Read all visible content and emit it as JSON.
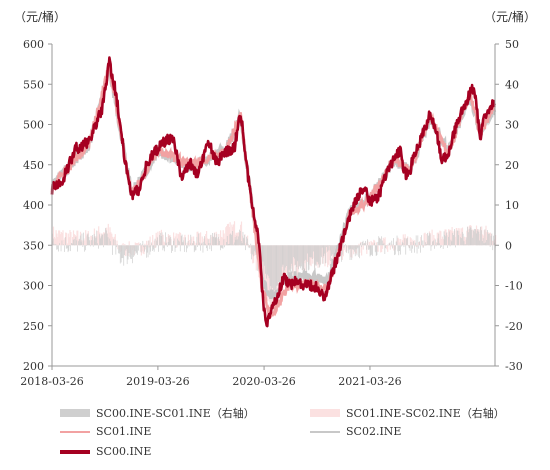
{
  "chart_data": {
    "type": "line",
    "left_unit": "（元/桶）",
    "right_unit": "（元/桶）",
    "x_ticks": [
      "2018-03-26",
      "2019-03-26",
      "2020-03-26",
      "2021-03-26"
    ],
    "x_range": [
      "2018-03-26",
      "2022-05-31"
    ],
    "ylim_left": [
      200,
      600
    ],
    "yticks_left": [
      200,
      250,
      300,
      350,
      400,
      450,
      500,
      550,
      600
    ],
    "ylim_right": [
      -30,
      50
    ],
    "yticks_right": [
      -30,
      -20,
      -10,
      0,
      10,
      20,
      30,
      40,
      50
    ],
    "grid": false,
    "legend_position": "bottom",
    "colors": {
      "sc00": "#a50021",
      "sc01": "#f2a2a2",
      "sc02": "#c8c8c8",
      "spread01": "#cfcfcf",
      "spread12": "#fbe1e1"
    },
    "series": [
      {
        "name": "SC00.INE",
        "axis": "left",
        "x": [
          "2018-03-26",
          "2018-05-01",
          "2018-06-15",
          "2018-08-01",
          "2018-09-15",
          "2018-10-10",
          "2018-11-01",
          "2018-12-01",
          "2018-12-25",
          "2019-01-20",
          "2019-02-20",
          "2019-03-26",
          "2019-04-25",
          "2019-05-20",
          "2019-06-15",
          "2019-07-15",
          "2019-08-10",
          "2019-09-10",
          "2019-09-20",
          "2019-10-15",
          "2019-11-15",
          "2019-12-15",
          "2020-01-05",
          "2020-01-20",
          "2020-02-05",
          "2020-02-25",
          "2020-03-10",
          "2020-03-20",
          "2020-04-01",
          "2020-04-20",
          "2020-05-10",
          "2020-06-01",
          "2020-06-20",
          "2020-07-20",
          "2020-08-20",
          "2020-09-10",
          "2020-10-01",
          "2020-10-20",
          "2020-11-01",
          "2020-11-20",
          "2020-12-15",
          "2021-01-15",
          "2021-02-10",
          "2021-03-05",
          "2021-03-26",
          "2021-04-20",
          "2021-05-20",
          "2021-06-20",
          "2021-07-10",
          "2021-07-20",
          "2021-08-10",
          "2021-08-20",
          "2021-09-15",
          "2021-10-20",
          "2021-11-10",
          "2021-11-30",
          "2021-12-20",
          "2022-01-20",
          "2022-02-10",
          "2022-03-08",
          "2022-03-20",
          "2022-04-10",
          "2022-04-25",
          "2022-05-31"
        ],
        "y": [
          420,
          430,
          470,
          478,
          520,
          578,
          540,
          460,
          410,
          420,
          455,
          470,
          482,
          480,
          435,
          452,
          438,
          472,
          478,
          452,
          465,
          472,
          515,
          470,
          420,
          375,
          355,
          292,
          250,
          270,
          285,
          310,
          300,
          305,
          300,
          300,
          296,
          282,
          295,
          320,
          350,
          385,
          410,
          420,
          405,
          408,
          435,
          460,
          470,
          440,
          438,
          458,
          478,
          515,
          490,
          455,
          460,
          505,
          520,
          540,
          545,
          485,
          510,
          530
        ]
      },
      {
        "name": "SC01.INE",
        "axis": "left",
        "x": [
          "2018-03-26",
          "2018-08-01",
          "2018-10-10",
          "2018-12-25",
          "2019-03-26",
          "2019-07-15",
          "2019-11-15",
          "2020-01-05",
          "2020-03-20",
          "2020-04-20",
          "2020-06-20",
          "2020-09-10",
          "2020-11-01",
          "2021-01-15",
          "2021-03-26",
          "2021-06-20",
          "2021-08-10",
          "2021-10-20",
          "2021-12-20",
          "2022-02-10",
          "2022-03-08",
          "2022-04-10",
          "2022-05-31"
        ],
        "y": [
          422,
          476,
          574,
          412,
          468,
          450,
          466,
          512,
          294,
          262,
          300,
          302,
          295,
          388,
          408,
          458,
          440,
          512,
          462,
          518,
          536,
          488,
          526
        ]
      },
      {
        "name": "SC02.INE",
        "axis": "left",
        "x": [
          "2018-03-26",
          "2018-08-01",
          "2018-10-10",
          "2018-12-25",
          "2019-03-26",
          "2019-07-15",
          "2019-11-15",
          "2020-01-05",
          "2020-03-20",
          "2020-04-20",
          "2020-06-20",
          "2020-09-10",
          "2020-11-01",
          "2021-01-15",
          "2021-03-26",
          "2021-06-20",
          "2021-08-10",
          "2021-10-20",
          "2021-12-20",
          "2022-02-10",
          "2022-03-08",
          "2022-04-10",
          "2022-05-31"
        ],
        "y": [
          425,
          474,
          570,
          415,
          466,
          448,
          468,
          510,
          302,
          288,
          310,
          312,
          305,
          390,
          410,
          456,
          442,
          508,
          465,
          515,
          532,
          490,
          522
        ]
      },
      {
        "name": "SC00.INE-SC01.INE（右轴）",
        "axis": "right",
        "x": [
          "2018-03-26",
          "2018-06-01",
          "2018-08-01",
          "2018-10-01",
          "2018-11-15",
          "2019-01-15",
          "2019-04-01",
          "2019-07-01",
          "2019-10-01",
          "2020-01-01",
          "2020-03-15",
          "2020-04-20",
          "2020-06-01",
          "2020-09-01",
          "2020-11-15",
          "2021-02-01",
          "2021-05-01",
          "2021-08-01",
          "2021-11-01",
          "2022-02-01",
          "2022-04-01",
          "2022-05-31"
        ],
        "y": [
          1,
          0,
          1,
          2,
          -3,
          -2,
          1,
          0,
          1,
          2,
          -5,
          -12,
          -6,
          -4,
          -2,
          -1,
          0,
          0,
          1,
          2,
          3,
          1
        ]
      },
      {
        "name": "SC01.INE-SC02.INE（右轴）",
        "axis": "right",
        "x": [
          "2018-03-26",
          "2018-06-01",
          "2018-08-01",
          "2018-10-01",
          "2018-11-15",
          "2019-01-15",
          "2019-04-01",
          "2019-07-01",
          "2019-10-01",
          "2020-01-01",
          "2020-03-15",
          "2020-04-20",
          "2020-06-01",
          "2020-09-01",
          "2020-11-15",
          "2021-02-01",
          "2021-05-01",
          "2021-08-01",
          "2021-11-01",
          "2022-02-01",
          "2022-04-01",
          "2022-05-31"
        ],
        "y": [
          3,
          2,
          2,
          4,
          -1,
          -1,
          2,
          1,
          2,
          5,
          -8,
          -15,
          -8,
          -5,
          -3,
          -1,
          0,
          1,
          2,
          3,
          4,
          2
        ]
      }
    ]
  },
  "legend": {
    "spread01": "SC00.INE-SC01.INE（右轴）",
    "spread12": "SC01.INE-SC02.INE（右轴）",
    "sc01": "SC01.INE",
    "sc02": "SC02.INE",
    "sc00": "SC00.INE"
  }
}
